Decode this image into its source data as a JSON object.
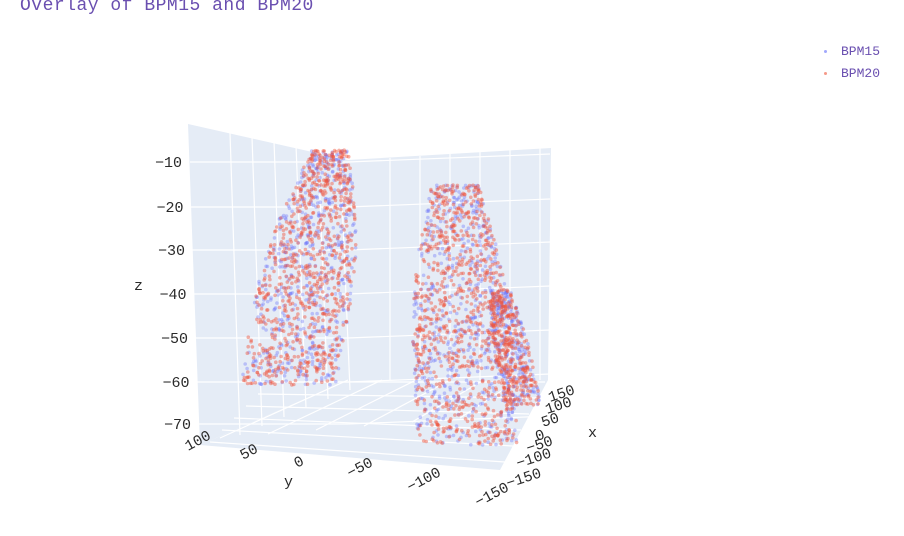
{
  "chart_data": {
    "type": "scatter3d",
    "title": "Overlay of BPM15 and BPM20",
    "xlabel": "x",
    "ylabel": "y",
    "zlabel": "z",
    "x_ticks": [
      "150",
      "100",
      "50",
      "0",
      "−50",
      "−100",
      "−150"
    ],
    "y_ticks": [
      "100",
      "50",
      "0",
      "−50",
      "−100",
      "−150"
    ],
    "z_ticks": [
      "−10",
      "−20",
      "−30",
      "−40",
      "−50",
      "−60",
      "−70"
    ],
    "xlim": [
      -150,
      150
    ],
    "ylim": [
      -150,
      100
    ],
    "zlim": [
      -70,
      -10
    ],
    "legend_position": "top-right",
    "grid": true,
    "series": [
      {
        "name": "BPM15",
        "color": "#636efa"
      },
      {
        "name": "BPM20",
        "color": "#ef553b"
      }
    ]
  }
}
